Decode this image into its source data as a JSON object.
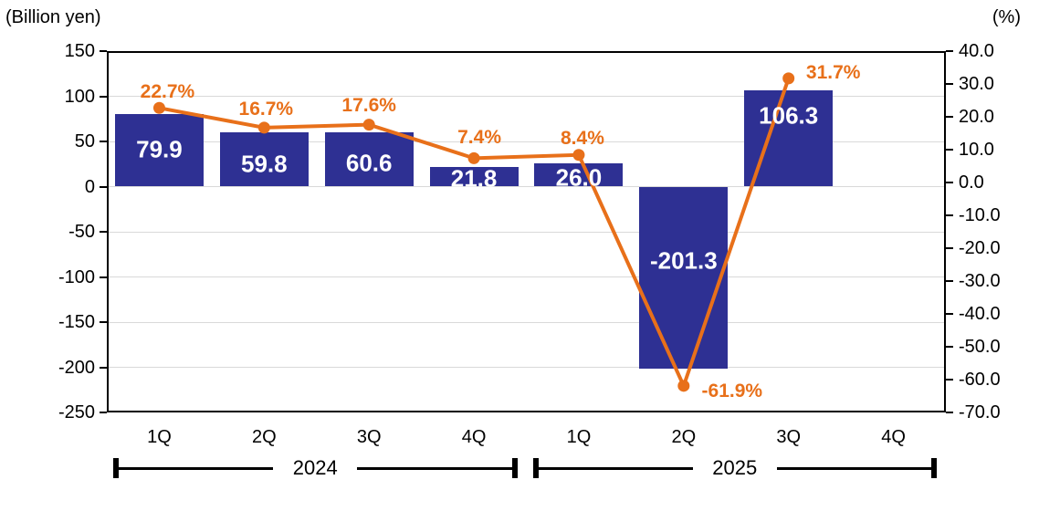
{
  "chart_data": {
    "type": "combo",
    "title": "",
    "categories": [
      "1Q",
      "2Q",
      "3Q",
      "4Q",
      "1Q",
      "2Q",
      "3Q",
      "4Q"
    ],
    "groups": [
      {
        "label": "2024",
        "start": 0,
        "end": 3
      },
      {
        "label": "2025",
        "start": 4,
        "end": 7
      }
    ],
    "left_axis": {
      "title": "(Billion yen)",
      "min": -250,
      "max": 150,
      "step": 50,
      "tick_labels": [
        "150",
        "100",
        "50",
        "0",
        "-50",
        "-100",
        "-150",
        "-200",
        "-250"
      ]
    },
    "right_axis": {
      "title": "(%)",
      "min": -70,
      "max": 40,
      "step": 10,
      "tick_labels": [
        "40.0",
        "30.0",
        "20.0",
        "10.0",
        "0.0",
        "-10.0",
        "-20.0",
        "-30.0",
        "-40.0",
        "-50.0",
        "-60.0",
        "-70.0"
      ]
    },
    "grid": true,
    "grid_color": "#d9d9d9",
    "border_color": "#000000",
    "legend": "none",
    "series": [
      {
        "name": "billion-yen-bars",
        "type": "bar",
        "axis": "left",
        "color": "#2E3093",
        "label_color": "#ffffff",
        "values": [
          79.9,
          59.8,
          60.6,
          21.8,
          26.0,
          -201.3,
          106.3,
          null
        ],
        "data_labels": [
          "79.9",
          "59.8",
          "60.6",
          "21.8",
          "26.0",
          "-201.3",
          "106.3",
          ""
        ],
        "label_fractions": [
          0.49,
          0.58,
          0.58,
          0.62,
          0.62,
          0.41,
          0.26,
          0
        ]
      },
      {
        "name": "percent-line",
        "type": "line",
        "axis": "right",
        "color": "#E8701A",
        "values": [
          22.7,
          16.7,
          17.6,
          7.4,
          8.4,
          -61.9,
          31.7,
          null
        ],
        "data_labels": [
          "22.7%",
          "16.7%",
          "17.6%",
          "7.4%",
          "8.4%",
          "-61.9%",
          "31.7%",
          ""
        ],
        "label_offsets": [
          [
            9,
            -17
          ],
          [
            2,
            -20
          ],
          [
            0,
            -21
          ],
          [
            6,
            -22
          ],
          [
            4,
            -18
          ],
          [
            53,
            6
          ],
          [
            49,
            -6
          ],
          [
            0,
            0
          ]
        ]
      }
    ]
  }
}
